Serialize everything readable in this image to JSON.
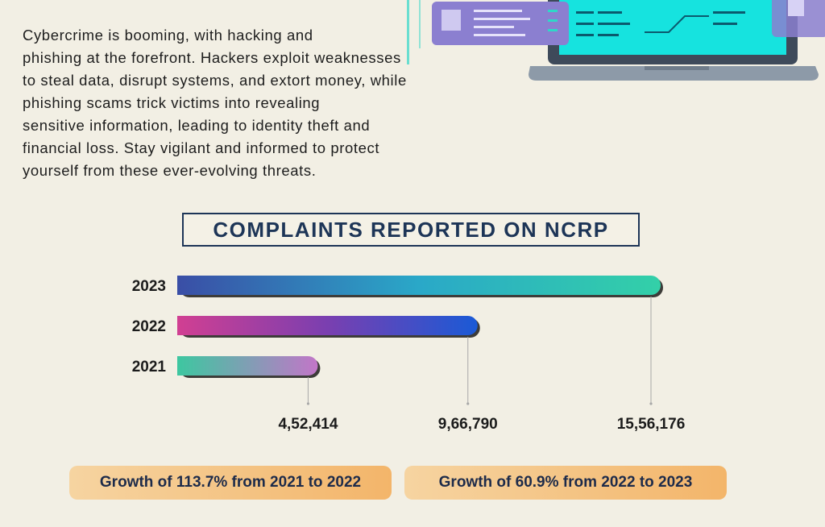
{
  "intro": {
    "lines": [
      "Cybercrime is booming, with hacking and",
      "phishing at the forefront. Hackers exploit weaknesses",
      "to steal data, disrupt systems, and extort money, while",
      "phishing scams trick victims into revealing",
      "sensitive information, leading to identity theft and",
      "financial loss. Stay vigilant and informed to protect",
      "yourself from these ever-evolving threats."
    ]
  },
  "chart_data": {
    "type": "bar",
    "orientation": "horizontal",
    "title": "COMPLAINTS REPORTED ON NCRP",
    "categories": [
      "2023",
      "2022",
      "2021"
    ],
    "values": [
      1556176,
      966790,
      452414
    ],
    "value_labels": [
      "15,56,176",
      "9,66,790",
      "4,52,414"
    ],
    "xlim": [
      0,
      1556176
    ],
    "grid": false,
    "colors": {
      "2023": [
        "#3a4ea6",
        "#2aa8c8",
        "#33d0a8"
      ],
      "2022": [
        "#d13f92",
        "#7a3fb0",
        "#1a5ad6"
      ],
      "2021": [
        "#3dc7a0",
        "#c276c8"
      ]
    }
  },
  "growth": [
    {
      "text": "Growth of 113.7% from 2021 to 2022"
    },
    {
      "text": "Growth of 60.9% from 2022 to 2023"
    }
  ]
}
